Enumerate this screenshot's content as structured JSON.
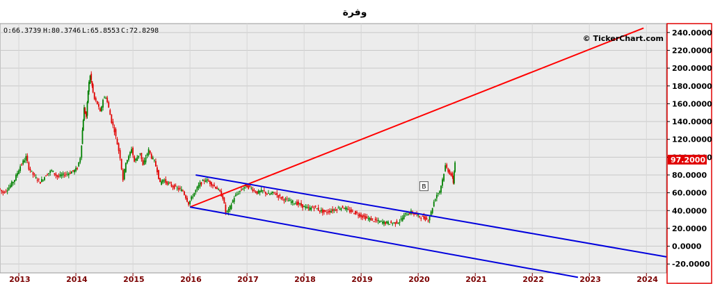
{
  "chart_data": {
    "type": "candlestick",
    "title": "وفرة",
    "ohlc": {
      "open": "O:66.3739",
      "high": "H:80.3746",
      "low": "L:65.8553",
      "close": "C:72.8298"
    },
    "watermark": "© TickerChart.com",
    "last_price": "97.2000",
    "marker_label": "B",
    "ylim": [
      -30,
      250
    ],
    "yticks": [
      "240.0000",
      "220.0000",
      "200.0000",
      "180.0000",
      "160.0000",
      "140.0000",
      "120.0000",
      "100.0000",
      "80.0000",
      "60.0000",
      "40.0000",
      "20.0000",
      "0.0000",
      "-20.0000"
    ],
    "ytick_values": [
      240,
      220,
      200,
      180,
      160,
      140,
      120,
      100,
      80,
      60,
      40,
      20,
      0,
      -20
    ],
    "xlim": [
      2012.67,
      2024.35
    ],
    "xticks": [
      "2013",
      "2014",
      "2015",
      "2016",
      "2017",
      "2018",
      "2019",
      "2020",
      "2021",
      "2022",
      "2023",
      "2024"
    ],
    "xtick_values": [
      2013,
      2014,
      2015,
      2016,
      2017,
      2018,
      2019,
      2020,
      2021,
      2022,
      2023,
      2024
    ],
    "price_path": [
      [
        2012.67,
        65
      ],
      [
        2012.75,
        60
      ],
      [
        2012.85,
        66
      ],
      [
        2012.95,
        75
      ],
      [
        2013.05,
        90
      ],
      [
        2013.15,
        100
      ],
      [
        2013.2,
        88
      ],
      [
        2013.3,
        78
      ],
      [
        2013.4,
        72
      ],
      [
        2013.5,
        80
      ],
      [
        2013.6,
        85
      ],
      [
        2013.7,
        78
      ],
      [
        2013.8,
        80
      ],
      [
        2013.9,
        82
      ],
      [
        2014.0,
        85
      ],
      [
        2014.05,
        88
      ],
      [
        2014.1,
        100
      ],
      [
        2014.13,
        130
      ],
      [
        2014.16,
        155
      ],
      [
        2014.2,
        145
      ],
      [
        2014.23,
        175
      ],
      [
        2014.27,
        192
      ],
      [
        2014.3,
        180
      ],
      [
        2014.35,
        165
      ],
      [
        2014.4,
        160
      ],
      [
        2014.45,
        150
      ],
      [
        2014.5,
        165
      ],
      [
        2014.55,
        168
      ],
      [
        2014.6,
        155
      ],
      [
        2014.65,
        140
      ],
      [
        2014.7,
        130
      ],
      [
        2014.75,
        115
      ],
      [
        2014.8,
        100
      ],
      [
        2014.85,
        75
      ],
      [
        2014.9,
        95
      ],
      [
        2014.95,
        100
      ],
      [
        2015.0,
        110
      ],
      [
        2015.05,
        95
      ],
      [
        2015.1,
        100
      ],
      [
        2015.15,
        105
      ],
      [
        2015.2,
        90
      ],
      [
        2015.25,
        100
      ],
      [
        2015.3,
        108
      ],
      [
        2015.35,
        100
      ],
      [
        2015.4,
        95
      ],
      [
        2015.45,
        85
      ],
      [
        2015.5,
        70
      ],
      [
        2015.55,
        75
      ],
      [
        2015.6,
        72
      ],
      [
        2015.7,
        68
      ],
      [
        2015.8,
        65
      ],
      [
        2015.9,
        62
      ],
      [
        2016.0,
        48
      ],
      [
        2016.1,
        60
      ],
      [
        2016.2,
        70
      ],
      [
        2016.3,
        75
      ],
      [
        2016.4,
        70
      ],
      [
        2016.5,
        65
      ],
      [
        2016.6,
        55
      ],
      [
        2016.65,
        38
      ],
      [
        2016.7,
        40
      ],
      [
        2016.8,
        55
      ],
      [
        2016.9,
        62
      ],
      [
        2017.0,
        68
      ],
      [
        2017.1,
        65
      ],
      [
        2017.2,
        60
      ],
      [
        2017.3,
        62
      ],
      [
        2017.4,
        58
      ],
      [
        2017.5,
        60
      ],
      [
        2017.6,
        55
      ],
      [
        2017.7,
        52
      ],
      [
        2017.8,
        50
      ],
      [
        2017.9,
        48
      ],
      [
        2018.0,
        45
      ],
      [
        2018.1,
        42
      ],
      [
        2018.2,
        44
      ],
      [
        2018.3,
        40
      ],
      [
        2018.4,
        38
      ],
      [
        2018.5,
        40
      ],
      [
        2018.6,
        42
      ],
      [
        2018.7,
        44
      ],
      [
        2018.8,
        40
      ],
      [
        2018.9,
        38
      ],
      [
        2019.0,
        35
      ],
      [
        2019.1,
        32
      ],
      [
        2019.2,
        30
      ],
      [
        2019.3,
        28
      ],
      [
        2019.4,
        27
      ],
      [
        2019.5,
        26
      ],
      [
        2019.6,
        26
      ],
      [
        2019.7,
        28
      ],
      [
        2019.8,
        36
      ],
      [
        2019.9,
        38
      ],
      [
        2020.0,
        35
      ],
      [
        2020.1,
        32
      ],
      [
        2020.2,
        30
      ],
      [
        2020.25,
        38
      ],
      [
        2020.3,
        50
      ],
      [
        2020.35,
        58
      ],
      [
        2020.4,
        62
      ],
      [
        2020.45,
        75
      ],
      [
        2020.5,
        90
      ],
      [
        2020.55,
        85
      ],
      [
        2020.6,
        80
      ],
      [
        2020.63,
        72
      ],
      [
        2020.66,
        95
      ]
    ],
    "trendlines": [
      {
        "color": "#ff0000",
        "points": [
          [
            2016.0,
            44
          ],
          [
            2023.95,
            245
          ]
        ]
      },
      {
        "color": "#0000dd",
        "points": [
          [
            2016.1,
            80
          ],
          [
            2024.35,
            -12
          ]
        ]
      },
      {
        "color": "#0000dd",
        "points": [
          [
            2016.0,
            44
          ],
          [
            2022.8,
            -35
          ]
        ]
      }
    ],
    "colors": {
      "up": "#008000",
      "down": "#e00000",
      "background": "#ececec",
      "last_price_bg": "#e00000",
      "axis_border": "#e00000"
    }
  }
}
